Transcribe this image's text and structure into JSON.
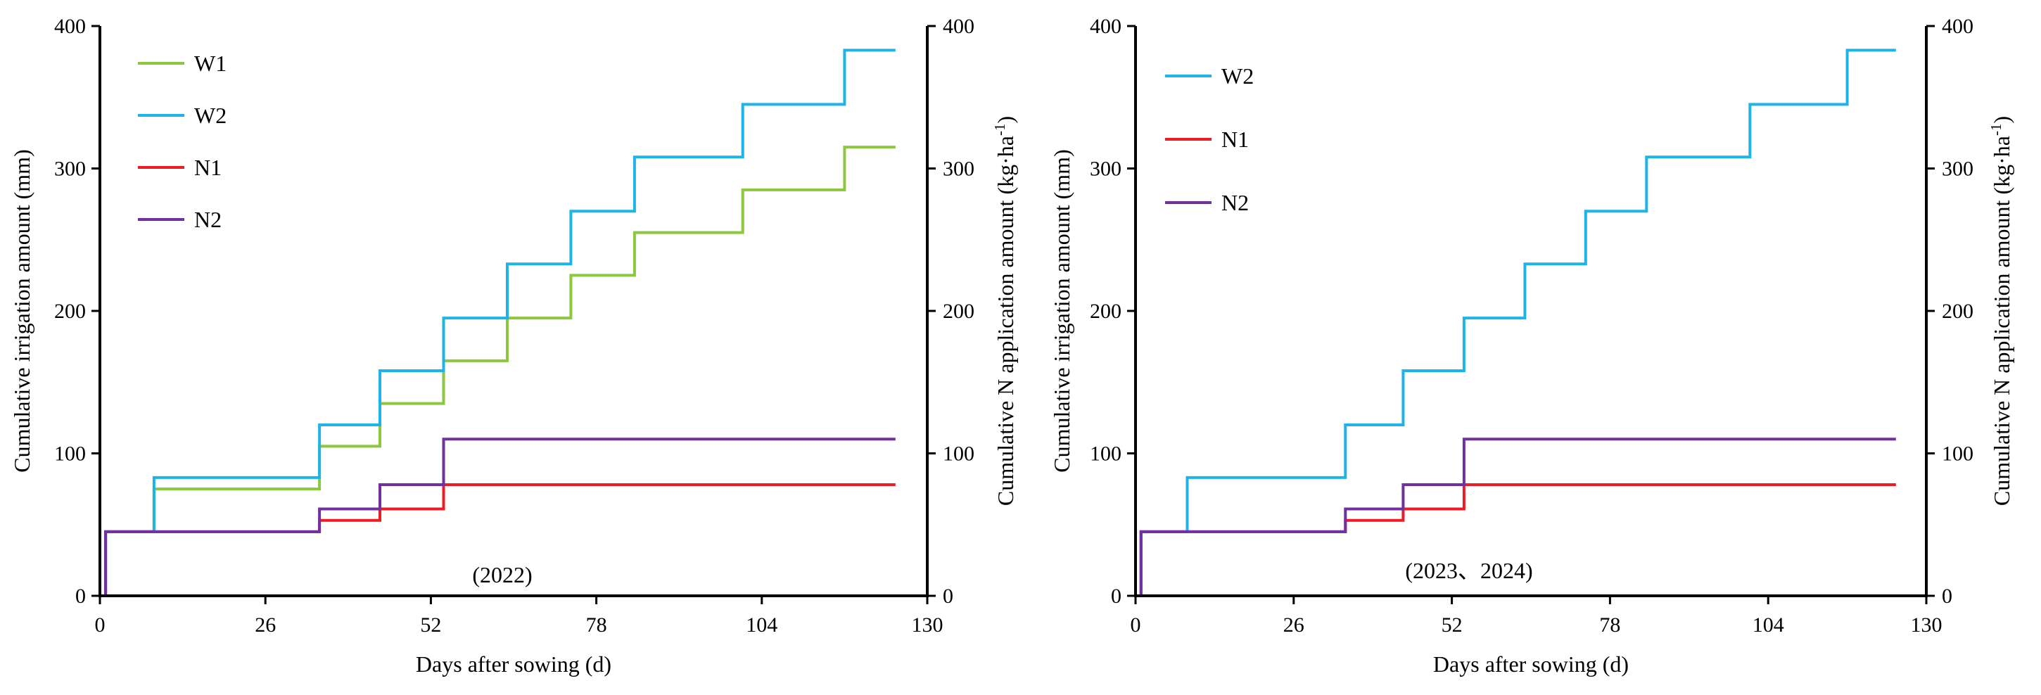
{
  "chart_data": [
    {
      "type": "line",
      "step": true,
      "annotation": "(2022)",
      "xlabel": "Days after sowing (d)",
      "ylabel": "Cumulative irrigation amount (mm)",
      "y2label_prefix": "Cumulative N application amount (kg·ha",
      "y2label_sup": "-1",
      "y2label_suffix": ")",
      "xlim": [
        0,
        130
      ],
      "ylim": [
        0,
        400
      ],
      "y2lim": [
        0,
        400
      ],
      "xticks": [
        0,
        26,
        52,
        78,
        104,
        130
      ],
      "yticks": [
        0,
        100,
        200,
        300,
        400
      ],
      "y2ticks": [
        0,
        100,
        200,
        300,
        400
      ],
      "legend_position": "top-left",
      "series": [
        {
          "name": "W1",
          "color": "#8dc63f",
          "x": [
            0.9,
            0.9,
            8.5,
            8.5,
            34.5,
            34.5,
            44,
            44,
            54,
            54,
            64,
            64,
            74,
            74,
            84,
            84,
            101,
            101,
            117,
            117,
            125
          ],
          "y": [
            0,
            45,
            45,
            75,
            75,
            105,
            105,
            135,
            135,
            165,
            165,
            195,
            195,
            225,
            225,
            255,
            255,
            285,
            285,
            315,
            315
          ]
        },
        {
          "name": "W2",
          "color": "#1fb4e8",
          "x": [
            0.9,
            0.9,
            8.5,
            8.5,
            34.5,
            34.5,
            44,
            44,
            54,
            54,
            64,
            64,
            74,
            74,
            84,
            84,
            101,
            101,
            117,
            117,
            125
          ],
          "y": [
            0,
            45,
            45,
            83,
            83,
            120,
            120,
            158,
            158,
            195,
            195,
            233,
            233,
            270,
            270,
            308,
            308,
            345,
            345,
            383,
            383
          ]
        },
        {
          "name": "N1",
          "color": "#ec1c24",
          "x": [
            0.9,
            0.9,
            34.5,
            34.5,
            44,
            44,
            54,
            54,
            125
          ],
          "y": [
            0,
            45,
            45,
            53,
            53,
            61,
            61,
            78,
            78
          ]
        },
        {
          "name": "N2",
          "color": "#7030a0",
          "x": [
            0.9,
            0.9,
            34.5,
            34.5,
            44,
            44,
            54,
            54,
            125
          ],
          "y": [
            0,
            45,
            45,
            61,
            61,
            78,
            78,
            110,
            110
          ]
        }
      ]
    },
    {
      "type": "line",
      "step": true,
      "annotation": "(2023、2024)",
      "xlabel": "Days after sowing (d)",
      "ylabel": "Cumulative irrigation amount (mm)",
      "y2label_prefix": "Cumulative N application amount (kg·ha",
      "y2label_sup": "-1",
      "y2label_suffix": ")",
      "xlim": [
        0,
        130
      ],
      "ylim": [
        0,
        400
      ],
      "y2lim": [
        0,
        400
      ],
      "xticks": [
        0,
        26,
        52,
        78,
        104,
        130
      ],
      "yticks": [
        0,
        100,
        200,
        300,
        400
      ],
      "y2ticks": [
        0,
        100,
        200,
        300,
        400
      ],
      "legend_position": "top-left",
      "series": [
        {
          "name": "W2",
          "color": "#1fb4e8",
          "x": [
            0.9,
            0.9,
            8.5,
            8.5,
            34.5,
            34.5,
            44,
            44,
            54,
            54,
            64,
            64,
            74,
            74,
            84,
            84,
            101,
            101,
            117,
            117,
            125
          ],
          "y": [
            0,
            45,
            45,
            83,
            83,
            120,
            120,
            158,
            158,
            195,
            195,
            233,
            233,
            270,
            270,
            308,
            308,
            345,
            345,
            383,
            383
          ]
        },
        {
          "name": "N1",
          "color": "#ec1c24",
          "x": [
            0.9,
            0.9,
            34.5,
            34.5,
            44,
            44,
            54,
            54,
            125
          ],
          "y": [
            0,
            45,
            45,
            53,
            53,
            61,
            61,
            78,
            78
          ]
        },
        {
          "name": "N2",
          "color": "#7030a0",
          "x": [
            0.9,
            0.9,
            34.5,
            34.5,
            44,
            44,
            54,
            54,
            125
          ],
          "y": [
            0,
            45,
            45,
            61,
            61,
            78,
            78,
            110,
            110
          ]
        }
      ]
    }
  ]
}
